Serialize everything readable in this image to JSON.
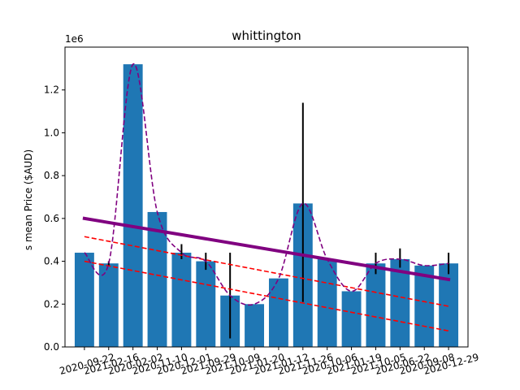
{
  "chart_data": {
    "type": "bar",
    "title": "whittington",
    "xlabel": "",
    "ylabel": "s mean Price ($AUD)",
    "y_offset_label": "1e6",
    "ylim": [
      0,
      1.4
    ],
    "y_scale_note": "values in millions (1e6)",
    "yticks": [
      0.0,
      0.2,
      0.4,
      0.6,
      0.8,
      1.0,
      1.2
    ],
    "ytick_labels": [
      "0.0",
      "0.2",
      "0.4",
      "0.6",
      "0.8",
      "1.0",
      "1.2"
    ],
    "x_tick_rotation_deg": 15,
    "categories": [
      "2020-09-22",
      "2021-02-16",
      "2020-02-02",
      "2020-11-10",
      "2020-12-01",
      "2021-09-29",
      "2021-10-09",
      "2021-01-20",
      "2021-01-12",
      "2021-11-26",
      "2020-10-06",
      "2021-01-19",
      "2021-10-05",
      "2020-06-22",
      "2020-09-08",
      "2020-12-29"
    ],
    "bars": {
      "color": "#1f77b4",
      "values": [
        0.44,
        0.39,
        1.32,
        0.63,
        0.44,
        0.4,
        0.24,
        0.2,
        0.32,
        0.67,
        0.41,
        0.26,
        0.39,
        0.41,
        0.38,
        0.39
      ]
    },
    "error_bars": {
      "color": "#000000",
      "ranges": [
        null,
        [
          0.38,
          0.4
        ],
        null,
        null,
        [
          0.41,
          0.48
        ],
        [
          0.36,
          0.44
        ],
        [
          0.04,
          0.44
        ],
        null,
        null,
        [
          0.21,
          1.14
        ],
        null,
        null,
        [
          0.34,
          0.44
        ],
        [
          0.37,
          0.46
        ],
        null,
        [
          0.34,
          0.44
        ]
      ]
    },
    "interpolated_line": {
      "color": "#800080",
      "style": "dashed",
      "values": [
        0.44,
        0.39,
        1.32,
        0.63,
        0.44,
        0.4,
        0.24,
        0.2,
        0.32,
        0.67,
        0.41,
        0.26,
        0.39,
        0.41,
        0.38,
        0.39
      ]
    },
    "trend_line": {
      "color": "#800080",
      "style": "solid",
      "start": 0.6,
      "end": 0.315
    },
    "bounds": {
      "color": "#ff0000",
      "style": "dashed",
      "upper": {
        "start": 0.515,
        "end": 0.19
      },
      "lower": {
        "start": 0.4,
        "end": 0.075
      }
    }
  }
}
